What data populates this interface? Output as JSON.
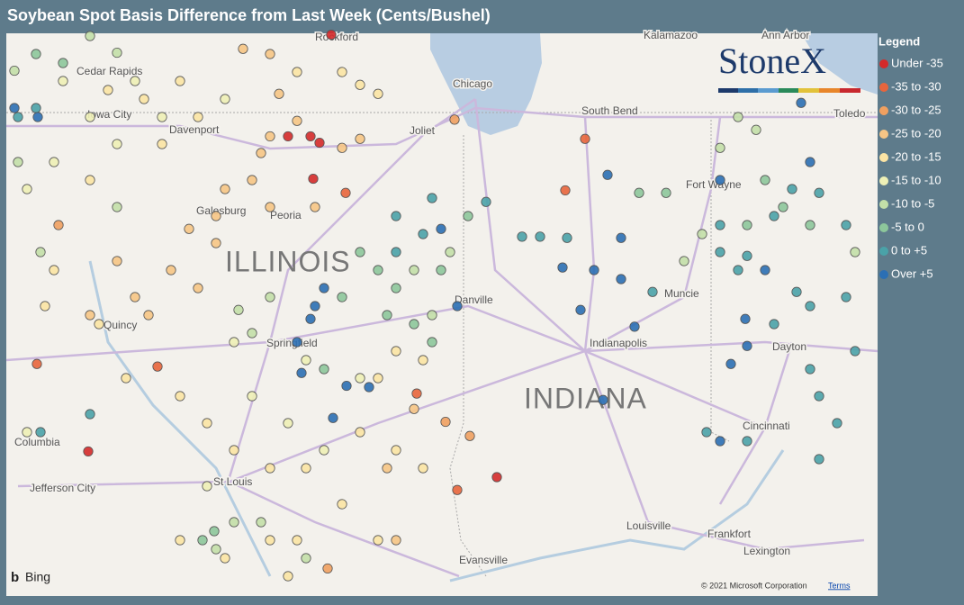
{
  "title": "Soybean Spot Basis Difference from Last Week (Cents/Bushel)",
  "logo": "StoneX",
  "legend": {
    "title": "Legend",
    "items": [
      {
        "label": "Under -35",
        "color": "#d42a2a"
      },
      {
        "label": "-35 to -30",
        "color": "#e8653c"
      },
      {
        "label": "-30 to -25",
        "color": "#f0a060"
      },
      {
        "label": "-25 to -20",
        "color": "#f6c585"
      },
      {
        "label": "-20 to -15",
        "color": "#fbe4a4"
      },
      {
        "label": "-15 to -10",
        "color": "#eef0b6"
      },
      {
        "label": "-10 to -5",
        "color": "#c3dfa8"
      },
      {
        "label": "-5 to 0",
        "color": "#8dc79b"
      },
      {
        "label": "0 to +5",
        "color": "#4aa2a8"
      },
      {
        "label": "Over +5",
        "color": "#2b6fb4"
      }
    ]
  },
  "map": {
    "cities": [
      "Rockford",
      "Cedar Rapids",
      "Iowa City",
      "Davenport",
      "Galesburg",
      "Peoria",
      "Quincy",
      "Springfield",
      "Columbia",
      "Jefferson City",
      "St Louis",
      "Joliet",
      "Chicago",
      "South Bend",
      "Kalamazoo",
      "Ann Arbor",
      "Toledo",
      "Fort Wayne",
      "Muncie",
      "Danville",
      "Indianapolis",
      "Dayton",
      "Cincinnati",
      "Louisville",
      "Frankfort",
      "Lexington",
      "Evansville"
    ],
    "states": [
      "ILLINOIS",
      "INDIANA"
    ],
    "provider": "Bing",
    "attribution": "© 2021 Microsoft Corporation",
    "terms": "Terms"
  },
  "points": [
    [
      -89.8,
      41.54,
      0
    ],
    [
      -89.55,
      41.54,
      0
    ],
    [
      -89.45,
      41.49,
      0
    ],
    [
      -89.52,
      41.21,
      0
    ],
    [
      -92.02,
      39.09,
      0
    ],
    [
      -87.48,
      38.89,
      0
    ],
    [
      -89.32,
      42.33,
      0
    ],
    [
      -89.16,
      41.1,
      1
    ],
    [
      -92.59,
      39.77,
      1
    ],
    [
      -91.25,
      39.75,
      1
    ],
    [
      -87.92,
      38.79,
      1
    ],
    [
      -86.5,
      41.52,
      1
    ],
    [
      -86.72,
      41.12,
      1
    ],
    [
      -87.95,
      41.67,
      2
    ],
    [
      -88.37,
      39.54,
      1
    ],
    [
      -88.05,
      39.32,
      2
    ],
    [
      -87.78,
      39.21,
      2
    ],
    [
      -89.36,
      38.18,
      2
    ],
    [
      -92.35,
      40.85,
      2
    ],
    [
      -90.0,
      41.54,
      3
    ],
    [
      -90.1,
      41.41,
      3
    ],
    [
      -90.5,
      41.13,
      3
    ],
    [
      -90.6,
      40.92,
      3
    ],
    [
      -90.9,
      40.82,
      3
    ],
    [
      -90.2,
      41.2,
      3
    ],
    [
      -89.7,
      41.66,
      3
    ],
    [
      -89.9,
      41.87,
      3
    ],
    [
      -90.3,
      42.22,
      3
    ],
    [
      -90.0,
      42.18,
      3
    ],
    [
      -92.0,
      40.15,
      3
    ],
    [
      -91.7,
      40.57,
      3
    ],
    [
      -91.5,
      40.29,
      3
    ],
    [
      -90.6,
      40.71,
      3
    ],
    [
      -91.1,
      40.5,
      3
    ],
    [
      -91.35,
      40.15,
      3
    ],
    [
      -90.8,
      40.36,
      3
    ],
    [
      -90.0,
      40.99,
      3
    ],
    [
      -89.2,
      41.45,
      3
    ],
    [
      -89.0,
      41.52,
      3
    ],
    [
      -89.5,
      40.99,
      3
    ],
    [
      -88.4,
      39.42,
      3
    ],
    [
      -88.7,
      38.96,
      3
    ],
    [
      -88.6,
      38.4,
      3
    ],
    [
      -89.0,
      41.94,
      4
    ],
    [
      -88.8,
      41.87,
      4
    ],
    [
      -89.2,
      42.04,
      4
    ],
    [
      -89.7,
      42.04,
      4
    ],
    [
      -91.0,
      41.97,
      4
    ],
    [
      -90.8,
      41.69,
      4
    ],
    [
      -91.2,
      41.48,
      4
    ],
    [
      -91.4,
      41.83,
      4
    ],
    [
      -91.8,
      41.9,
      4
    ],
    [
      -92.0,
      41.2,
      4
    ],
    [
      -92.4,
      40.5,
      4
    ],
    [
      -92.5,
      40.22,
      4
    ],
    [
      -91.9,
      40.08,
      4
    ],
    [
      -91.6,
      39.66,
      4
    ],
    [
      -91.0,
      39.52,
      4
    ],
    [
      -90.7,
      39.31,
      4
    ],
    [
      -90.4,
      39.1,
      4
    ],
    [
      -90.0,
      38.96,
      4
    ],
    [
      -89.6,
      38.96,
      4
    ],
    [
      -89.0,
      39.24,
      4
    ],
    [
      -88.6,
      39.1,
      4
    ],
    [
      -88.3,
      38.96,
      4
    ],
    [
      -89.2,
      38.68,
      4
    ],
    [
      -88.8,
      38.4,
      4
    ],
    [
      -90.0,
      38.4,
      4
    ],
    [
      -89.8,
      38.12,
      4
    ],
    [
      -90.5,
      38.26,
      4
    ],
    [
      -91.0,
      38.4,
      4
    ],
    [
      -88.8,
      39.66,
      4
    ],
    [
      -88.6,
      39.87,
      4
    ],
    [
      -88.3,
      39.8,
      4
    ],
    [
      -89.7,
      38.4,
      4
    ],
    [
      -91.2,
      41.69,
      5
    ],
    [
      -91.7,
      41.48,
      5
    ],
    [
      -92.4,
      41.34,
      5
    ],
    [
      -92.7,
      41.13,
      5
    ],
    [
      -92.0,
      41.69,
      5
    ],
    [
      -92.3,
      41.97,
      5
    ],
    [
      -91.5,
      41.97,
      5
    ],
    [
      -90.5,
      41.83,
      5
    ],
    [
      -90.2,
      39.52,
      5
    ],
    [
      -89.8,
      39.31,
      5
    ],
    [
      -89.4,
      39.1,
      5
    ],
    [
      -90.7,
      38.82,
      5
    ],
    [
      -90.4,
      39.94,
      5
    ],
    [
      -89.6,
      39.8,
      5
    ],
    [
      -89.0,
      39.66,
      5
    ],
    [
      -92.7,
      39.24,
      5
    ],
    [
      -91.7,
      42.19,
      6
    ],
    [
      -92.0,
      42.32,
      6
    ],
    [
      -92.84,
      42.05,
      6
    ],
    [
      -92.8,
      41.34,
      6
    ],
    [
      -92.55,
      40.64,
      6
    ],
    [
      -91.7,
      40.99,
      6
    ],
    [
      -90.35,
      40.19,
      6
    ],
    [
      -90.0,
      40.29,
      6
    ],
    [
      -90.2,
      40.01,
      6
    ],
    [
      -88.4,
      40.5,
      6
    ],
    [
      -88.2,
      40.15,
      6
    ],
    [
      -88.0,
      40.64,
      6
    ],
    [
      -90.4,
      38.54,
      6
    ],
    [
      -90.6,
      38.33,
      6
    ],
    [
      -90.1,
      38.54,
      6
    ],
    [
      -89.6,
      38.26,
      6
    ],
    [
      -84.8,
      41.69,
      6
    ],
    [
      -85.0,
      41.45,
      6
    ],
    [
      -84.6,
      41.59,
      6
    ],
    [
      -85.2,
      40.78,
      6
    ],
    [
      -83.5,
      40.64,
      6
    ],
    [
      -85.4,
      40.57,
      6
    ],
    [
      -92.6,
      42.18,
      7
    ],
    [
      -92.3,
      42.11,
      7
    ],
    [
      -89.0,
      40.64,
      7
    ],
    [
      -88.8,
      40.5,
      7
    ],
    [
      -88.6,
      40.36,
      7
    ],
    [
      -89.2,
      40.29,
      7
    ],
    [
      -88.7,
      40.15,
      7
    ],
    [
      -88.4,
      40.08,
      7
    ],
    [
      -88.2,
      39.94,
      7
    ],
    [
      -89.4,
      39.73,
      7
    ],
    [
      -87.8,
      40.92,
      7
    ],
    [
      -88.1,
      40.5,
      7
    ],
    [
      -85.9,
      41.1,
      7
    ],
    [
      -85.6,
      41.1,
      7
    ],
    [
      -90.75,
      38.4,
      7
    ],
    [
      -90.62,
      38.47,
      7
    ],
    [
      -84.5,
      41.2,
      7
    ],
    [
      -84.7,
      40.85,
      7
    ],
    [
      -84.3,
      40.99,
      7
    ],
    [
      -84.0,
      40.85,
      7
    ],
    [
      -88.6,
      40.92,
      8
    ],
    [
      -88.3,
      40.78,
      8
    ],
    [
      -88.2,
      41.06,
      8
    ],
    [
      -88.6,
      40.64,
      8
    ],
    [
      -87.6,
      41.03,
      8
    ],
    [
      -87.2,
      40.76,
      8
    ],
    [
      -87.0,
      40.76,
      8
    ],
    [
      -85.75,
      40.33,
      8
    ],
    [
      -84.15,
      40.33,
      8
    ],
    [
      -84.0,
      40.22,
      8
    ],
    [
      -84.4,
      40.08,
      8
    ],
    [
      -84.8,
      40.5,
      8
    ],
    [
      -85.0,
      40.64,
      8
    ],
    [
      -84.7,
      40.61,
      8
    ],
    [
      -84.0,
      39.73,
      8
    ],
    [
      -83.9,
      39.52,
      8
    ],
    [
      -83.7,
      39.31,
      8
    ],
    [
      -83.9,
      39.03,
      8
    ],
    [
      -84.7,
      39.17,
      8
    ],
    [
      -85.0,
      40.85,
      8
    ],
    [
      -84.4,
      40.92,
      8
    ],
    [
      -84.2,
      41.13,
      8
    ],
    [
      -83.9,
      41.1,
      8
    ],
    [
      -83.6,
      40.85,
      8
    ],
    [
      -85.15,
      39.24,
      8
    ],
    [
      -86.7,
      40.75,
      8
    ],
    [
      -92.6,
      41.76,
      8
    ],
    [
      -92.8,
      41.69,
      8
    ],
    [
      -92.55,
      39.24,
      8
    ],
    [
      -92.0,
      39.38,
      8
    ],
    [
      -83.6,
      40.29,
      8
    ],
    [
      -83.5,
      39.87,
      8
    ],
    [
      -86.25,
      41.24,
      9
    ],
    [
      -86.1,
      40.75,
      9
    ],
    [
      -86.4,
      40.5,
      9
    ],
    [
      -86.75,
      40.52,
      9
    ],
    [
      -86.1,
      40.43,
      9
    ],
    [
      -86.55,
      40.19,
      9
    ],
    [
      -85.95,
      40.06,
      9
    ],
    [
      -86.3,
      39.49,
      9
    ],
    [
      -88.1,
      40.82,
      9
    ],
    [
      -89.4,
      40.36,
      9
    ],
    [
      -89.5,
      40.22,
      9
    ],
    [
      -89.55,
      40.12,
      9
    ],
    [
      -89.7,
      39.94,
      9
    ],
    [
      -89.65,
      39.7,
      9
    ],
    [
      -89.15,
      39.6,
      9
    ],
    [
      -89.3,
      39.35,
      9
    ],
    [
      -88.9,
      39.59,
      9
    ],
    [
      -87.92,
      40.22,
      9
    ],
    [
      -84.72,
      40.12,
      9
    ],
    [
      -84.7,
      39.91,
      9
    ],
    [
      -84.88,
      39.77,
      9
    ],
    [
      -84.5,
      40.5,
      9
    ],
    [
      -84.0,
      41.34,
      9
    ],
    [
      -85.0,
      41.2,
      9
    ],
    [
      -84.1,
      41.8,
      9
    ],
    [
      -92.58,
      41.69,
      9
    ],
    [
      -92.84,
      41.76,
      9
    ],
    [
      -85.0,
      39.17,
      9
    ]
  ]
}
